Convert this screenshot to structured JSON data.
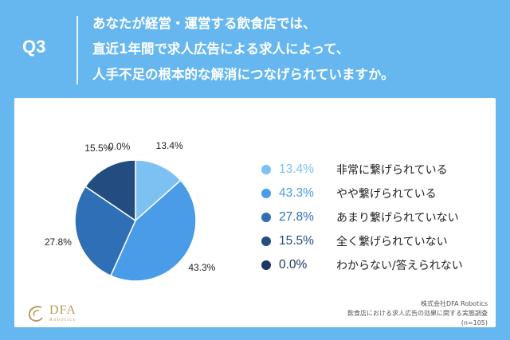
{
  "header": {
    "q_label": "Q3",
    "question_lines": [
      "あなたが経営・運営する飲食店では、",
      "直近1年間で求人広告による求人によって、",
      "人手不足の根本的な解消につなげられていますか。"
    ]
  },
  "chart_data": {
    "type": "pie",
    "slices": [
      {
        "label": "非常に繋げられている",
        "value": 13.4,
        "value_label": "13.4%",
        "color": "#7cc1f2"
      },
      {
        "label": "やや繋げられている",
        "value": 43.3,
        "value_label": "43.3%",
        "color": "#4a9be8"
      },
      {
        "label": "あまり繋げられていない",
        "value": 27.8,
        "value_label": "27.8%",
        "color": "#2f6fb5"
      },
      {
        "label": "全く繋げられていない",
        "value": 15.5,
        "value_label": "15.5%",
        "color": "#234d80"
      },
      {
        "label": "わからない/答えられない",
        "value": 0.0,
        "value_label": "0.0%",
        "color": "#1b3566"
      }
    ],
    "legend_placement": "right"
  },
  "footer": {
    "logo_main": "DFA",
    "logo_sub": "Robotics",
    "source_lines": [
      "株式会社DFA Robotics",
      "飲食店における求人広告の効果に関する実態調査",
      "(n=105)"
    ]
  }
}
